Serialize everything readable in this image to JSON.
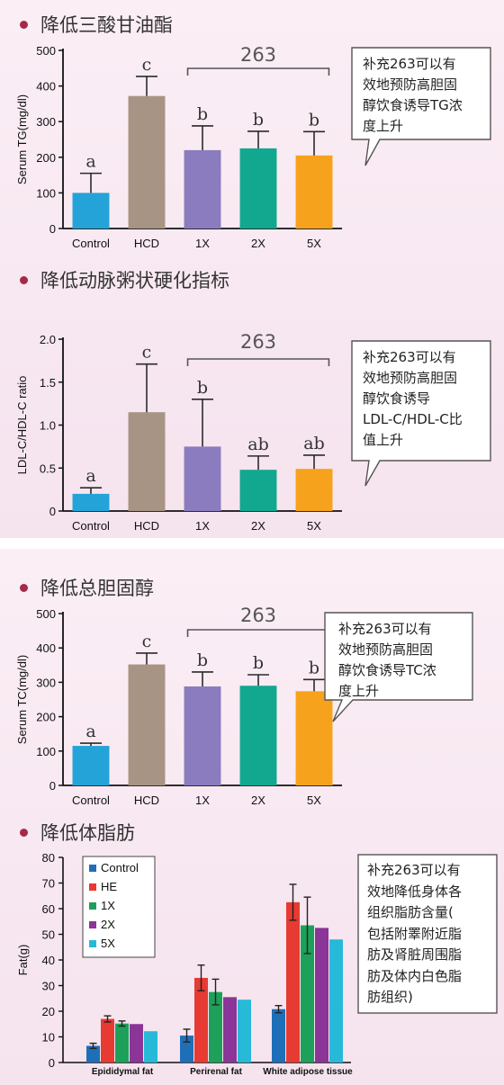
{
  "colors": {
    "control": "#24a3d8",
    "hcd": "#a89484",
    "x1": "#8b7cc0",
    "x2": "#12a88f",
    "x5": "#f7a21c",
    "bullet": "#a52a47",
    "fat_control": "#1e6fb8",
    "fat_he": "#e63a33",
    "fat_1x": "#1da05a",
    "fat_2x": "#8a3597",
    "fat_5x": "#27b9d8"
  },
  "sections": {
    "tg": {
      "heading": "降低三酸甘油酯",
      "callout": [
        "补充263可以有",
        "效地预防高胆固",
        "醇饮食诱导TG浓",
        "度上升"
      ]
    },
    "ldl": {
      "heading": "降低动脉粥状硬化指标",
      "callout": [
        "补充263可以有",
        "效地预防高胆固",
        "醇饮食诱导",
        "LDL-C/HDL-C比",
        "值上升"
      ]
    },
    "tc": {
      "heading": "降低总胆固醇",
      "callout": [
        "补充263可以有",
        "效地预防高胆固",
        "醇饮食诱导TC浓",
        "度上升"
      ]
    },
    "fat": {
      "heading": "降低体脂肪",
      "callout": [
        "补充263可以有",
        "效地降低身体各",
        "组织脂肪含量(",
        "包括附睪附近脂",
        "肪及肾脏周围脂",
        "肪及体内白色脂",
        "肪组织)"
      ]
    }
  },
  "chart_data": [
    {
      "id": "tg",
      "type": "bar",
      "ylabel": "Serum TG(mg/dl)",
      "ylim": [
        0,
        500
      ],
      "yticks": [
        0,
        100,
        200,
        300,
        400,
        500
      ],
      "categories": [
        "Control",
        "HCD",
        "1X",
        "2X",
        "5X"
      ],
      "values": [
        100,
        372,
        220,
        225,
        205
      ],
      "errors": [
        55,
        55,
        68,
        48,
        67
      ],
      "letters": [
        "a",
        "c",
        "b",
        "b",
        "b"
      ],
      "bracket_label": "263",
      "grid": false
    },
    {
      "id": "ldl",
      "type": "bar",
      "ylabel": "LDL-C/HDL-C ratio",
      "ylim": [
        0,
        2.0
      ],
      "yticks": [
        0,
        0.5,
        1.0,
        1.5,
        2.0
      ],
      "ytick_labels": [
        "0",
        "0.5",
        "1.0",
        "1.5",
        "2.0"
      ],
      "categories": [
        "Control",
        "HCD",
        "1X",
        "2X",
        "5X"
      ],
      "values": [
        0.2,
        1.15,
        0.75,
        0.48,
        0.49
      ],
      "errors": [
        0.07,
        0.56,
        0.55,
        0.16,
        0.16
      ],
      "letters": [
        "a",
        "c",
        "b",
        "ab",
        "ab"
      ],
      "bracket_label": "263",
      "grid": false
    },
    {
      "id": "tc",
      "type": "bar",
      "ylabel": "Serum TC(mg/dl)",
      "ylim": [
        0,
        500
      ],
      "yticks": [
        0,
        100,
        200,
        300,
        400,
        500
      ],
      "categories": [
        "Control",
        "HCD",
        "1X",
        "2X",
        "5X"
      ],
      "values": [
        115,
        352,
        288,
        290,
        274
      ],
      "errors": [
        8,
        33,
        42,
        32,
        34
      ],
      "letters": [
        "a",
        "c",
        "b",
        "b",
        "b"
      ],
      "bracket_label": "263",
      "grid": false
    },
    {
      "id": "fat",
      "type": "bar",
      "ylabel": "Fat(g)",
      "ylim": [
        0,
        80
      ],
      "yticks": [
        0,
        10,
        20,
        30,
        40,
        50,
        60,
        70,
        80
      ],
      "categories": [
        "Epididymal fat",
        "Perirenal fat",
        "White adipose tissue"
      ],
      "legend_position": "top-left",
      "series": [
        {
          "name": "Control",
          "values": [
            6.5,
            10.5,
            20.8
          ],
          "errors": [
            1.0,
            2.5,
            1.4
          ]
        },
        {
          "name": "HE",
          "values": [
            17.0,
            33.0,
            62.5
          ],
          "errors": [
            1.2,
            5.0,
            7.0
          ]
        },
        {
          "name": "1X",
          "values": [
            15.2,
            27.5,
            53.5
          ],
          "errors": [
            1.0,
            5.0,
            11.0
          ]
        },
        {
          "name": "2X",
          "values": [
            15.0,
            25.5,
            52.5
          ],
          "errors": [
            0,
            0,
            0
          ]
        },
        {
          "name": "5X",
          "values": [
            12.2,
            24.5,
            48.0
          ],
          "errors": [
            0,
            0,
            0
          ]
        }
      ],
      "grid": false
    }
  ]
}
